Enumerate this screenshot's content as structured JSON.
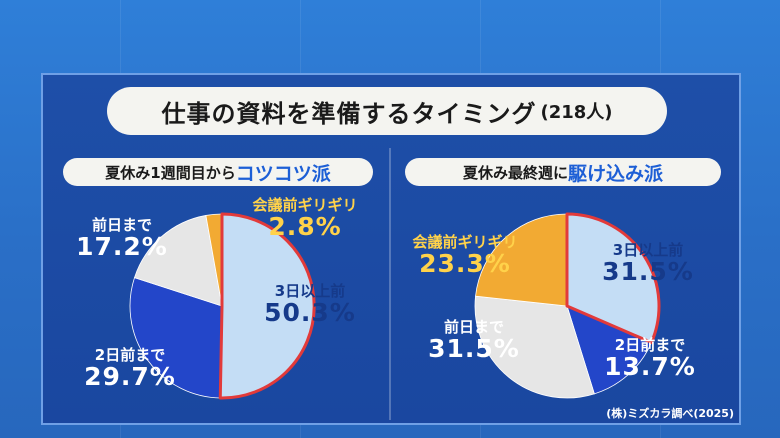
{
  "title": "仕事の資料を準備するタイミング",
  "title_count": "(218人)",
  "source": "(株)ミズカラ調べ(2025)",
  "colors": {
    "three_days": "#c4ddf5",
    "two_days": "#2346c9",
    "day_before": "#e6e6e6",
    "last_minute": "#f2aa33",
    "outline": "#e23a3a"
  },
  "chart_data": [
    {
      "type": "pie",
      "title_prefix": "夏休み1週間目から",
      "title_highlight": "コツコツ派",
      "categories": [
        "3日以上前",
        "2日前まで",
        "前日まで",
        "会議前ギリギリ"
      ],
      "values": [
        50.3,
        29.7,
        17.2,
        2.8
      ],
      "labels": [
        "50.3%",
        "29.7%",
        "17.2%",
        "2.8%"
      ]
    },
    {
      "type": "pie",
      "title_prefix": "夏休み最終週に",
      "title_highlight": "駆け込み派",
      "categories": [
        "3日以上前",
        "2日前まで",
        "前日まで",
        "会議前ギリギリ"
      ],
      "values": [
        31.5,
        13.7,
        31.5,
        23.3
      ],
      "labels": [
        "31.5%",
        "13.7%",
        "31.5%",
        "23.3%"
      ]
    }
  ]
}
